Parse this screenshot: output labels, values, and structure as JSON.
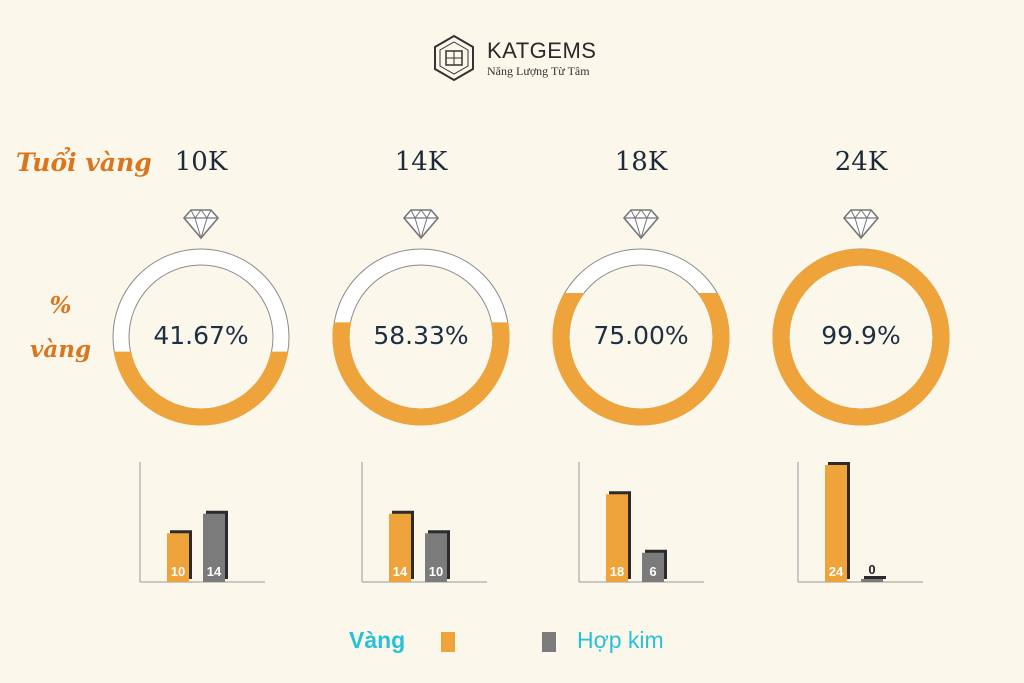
{
  "brand": {
    "name": "KATGEMS",
    "tagline": "Năng Lượng Từ Tâm"
  },
  "labels": {
    "karat_row": "Tuổi vàng",
    "percent_row": [
      "%",
      "vàng"
    ]
  },
  "colors": {
    "gold": "#eea43a",
    "alloy": "#7b7b7b",
    "accent_text": "#d9761f",
    "legend_text": "#27c2da"
  },
  "icons": {
    "gem": "diamond-icon",
    "logo": "katgems-logo-icon"
  },
  "chart_data": {
    "type": "bar",
    "categories": [
      "10K",
      "14K",
      "18K",
      "24K"
    ],
    "gold_percent": [
      41.67,
      58.33,
      75.0,
      99.9
    ],
    "gold_percent_labels": [
      "41.67%",
      "58.33%",
      "75.00%",
      "99.9%"
    ],
    "series": [
      {
        "name": "Vàng",
        "values": [
          10,
          14,
          18,
          24
        ]
      },
      {
        "name": "Hợp kim",
        "values": [
          14,
          10,
          6,
          0
        ]
      }
    ],
    "ylim": [
      0,
      24
    ],
    "legend": {
      "position": "bottom"
    }
  }
}
